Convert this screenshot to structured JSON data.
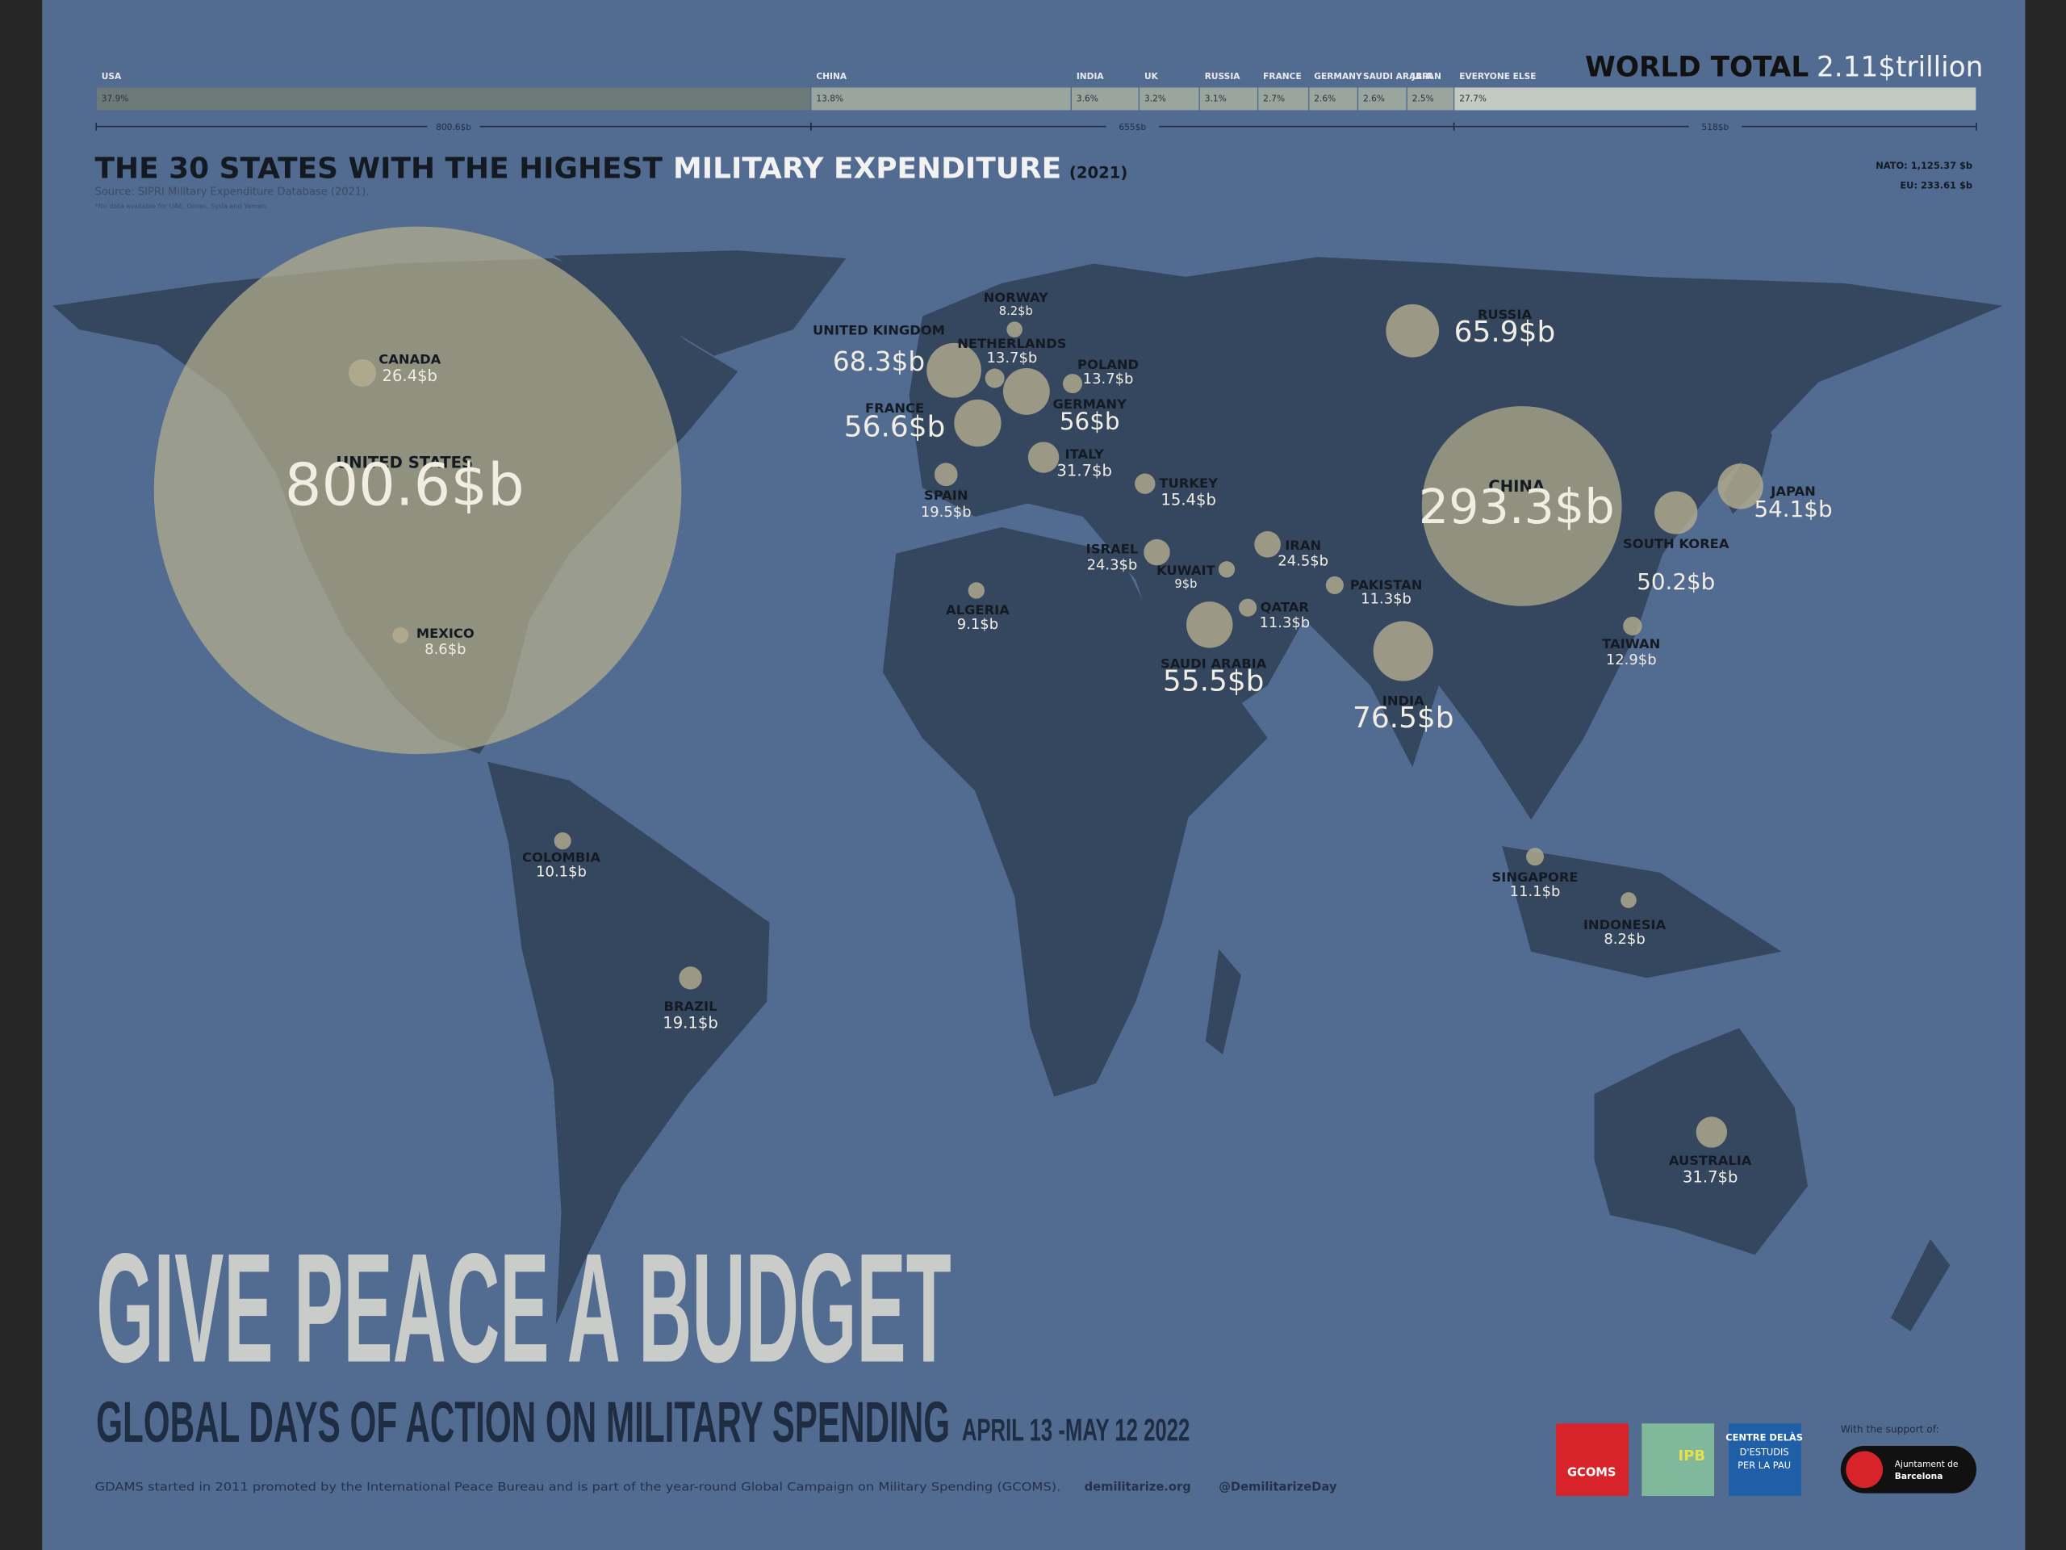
{
  "header": {
    "world_total_label": "WORLD TOTAL",
    "world_total_value": "2.11$trillion",
    "shares": [
      {
        "name": "USA",
        "share": 37.9,
        "share_label": "37.9%"
      },
      {
        "name": "CHINA",
        "share": 13.8,
        "share_label": "13.8%"
      },
      {
        "name": "INDIA",
        "share": 3.6,
        "share_label": "3.6%"
      },
      {
        "name": "UK",
        "share": 3.2,
        "share_label": "3.2%"
      },
      {
        "name": "RUSSIA",
        "share": 3.1,
        "share_label": "3.1%"
      },
      {
        "name": "FRANCE",
        "share": 2.7,
        "share_label": "2.7%"
      },
      {
        "name": "GERMANY",
        "share": 2.6,
        "share_label": "2.6%"
      },
      {
        "name": "SAUDI ARABIA",
        "share": 2.6,
        "share_label": "2.6%"
      },
      {
        "name": "JAPAN",
        "share": 2.5,
        "share_label": "2.5%"
      },
      {
        "name": "EVERYONE ELSE",
        "share": 27.7,
        "share_label": "27.7%"
      }
    ],
    "spans": [
      "800.6$b",
      "655$b",
      "518$b"
    ],
    "title_dark": "THE 30 STATES WITH THE HIGHEST",
    "title_light": "MILITARY EXPENDITURE",
    "title_year": "(2021)",
    "source": "Source: SIPRI Military Expenditure Database (2021).",
    "note": "*No data available for UAE, Oman, Syria and Yemen.",
    "nato": "NATO: 1,125.37 $b",
    "eu": "EU: 233.61 $b"
  },
  "states": [
    {
      "name": "UNITED STATES",
      "value": 800.6,
      "value_label": "800.6$b"
    },
    {
      "name": "CHINA",
      "value": 293.3,
      "value_label": "293.3$b"
    },
    {
      "name": "INDIA",
      "value": 76.5,
      "value_label": "76.5$b"
    },
    {
      "name": "UNITED KINGDOM",
      "value": 68.3,
      "value_label": "68.3$b"
    },
    {
      "name": "RUSSIA",
      "value": 65.9,
      "value_label": "65.9$b"
    },
    {
      "name": "FRANCE",
      "value": 56.6,
      "value_label": "56.6$b"
    },
    {
      "name": "GERMANY",
      "value": 56,
      "value_label": "56$b"
    },
    {
      "name": "SAUDI ARABIA",
      "value": 55.5,
      "value_label": "55.5$b"
    },
    {
      "name": "JAPAN",
      "value": 54.1,
      "value_label": "54.1$b"
    },
    {
      "name": "SOUTH KOREA",
      "value": 50.2,
      "value_label": "50.2$b"
    },
    {
      "name": "ITALY",
      "value": 31.7,
      "value_label": "31.7$b"
    },
    {
      "name": "AUSTRALIA",
      "value": 31.7,
      "value_label": "31.7$b"
    },
    {
      "name": "CANADA",
      "value": 26.4,
      "value_label": "26.4$b"
    },
    {
      "name": "IRAN",
      "value": 24.5,
      "value_label": "24.5$b"
    },
    {
      "name": "ISRAEL",
      "value": 24.3,
      "value_label": "24.3$b"
    },
    {
      "name": "SPAIN",
      "value": 19.5,
      "value_label": "19.5$b"
    },
    {
      "name": "BRAZIL",
      "value": 19.1,
      "value_label": "19.1$b"
    },
    {
      "name": "TURKEY",
      "value": 15.4,
      "value_label": "15.4$b"
    },
    {
      "name": "NETHERLANDS",
      "value": 13.7,
      "value_label": "13.7$b"
    },
    {
      "name": "POLAND",
      "value": 13.7,
      "value_label": "13.7$b"
    },
    {
      "name": "TAIWAN",
      "value": 12.9,
      "value_label": "12.9$b"
    },
    {
      "name": "PAKISTAN",
      "value": 11.3,
      "value_label": "11.3$b"
    },
    {
      "name": "QATAR",
      "value": 11.3,
      "value_label": "11.3$b"
    },
    {
      "name": "SINGAPORE",
      "value": 11.1,
      "value_label": "11.1$b"
    },
    {
      "name": "COLOMBIA",
      "value": 10.1,
      "value_label": "10.1$b"
    },
    {
      "name": "ALGERIA",
      "value": 9.1,
      "value_label": "9.1$b"
    },
    {
      "name": "KUWAIT",
      "value": 9,
      "value_label": "9$b"
    },
    {
      "name": "MEXICO",
      "value": 8.6,
      "value_label": "8.6$b"
    },
    {
      "name": "NORWAY",
      "value": 8.2,
      "value_label": "8.2$b"
    },
    {
      "name": "INDONESIA",
      "value": 8.2,
      "value_label": "8.2$b"
    }
  ],
  "footer": {
    "headline": "GIVE PEACE A BUDGET",
    "subheadline": "GLOBAL DAYS OF ACTION ON MILITARY SPENDING",
    "dates": "APRIL 13 -MAY 12 2022",
    "about": "GDAMS started in 2011 promoted by the International Peace Bureau and is part of the year-round Global Campaign on Military Spending (GCOMS).",
    "website": "demilitarize.org",
    "handle": "@DemilitarizeDay",
    "logo_gcoms": "GCOMS",
    "logo_ipb": "IPB",
    "logo_delas": [
      "CENTRE DELÀS",
      "D'ESTUDIS",
      "PER LA PAU"
    ],
    "support": "With the support of:",
    "logo_barcelona": [
      "Ajuntament de",
      "Barcelona"
    ]
  }
}
